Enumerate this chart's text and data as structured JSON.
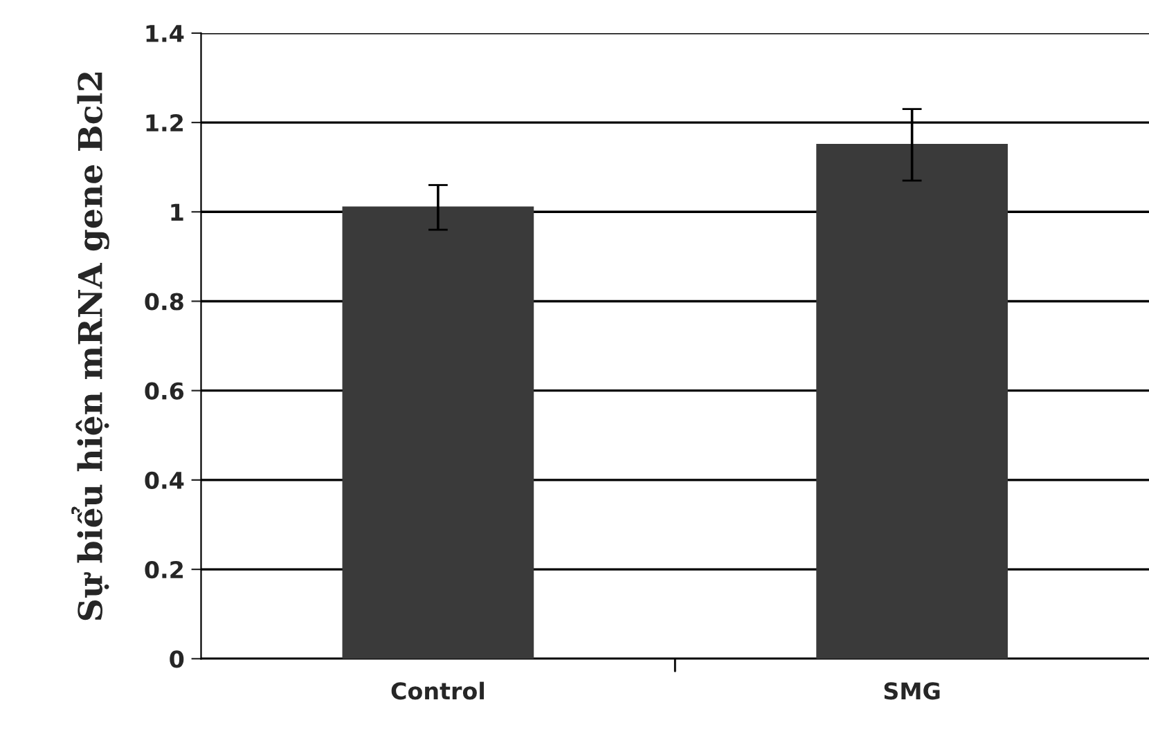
{
  "chart_data": {
    "type": "bar",
    "ylabel": "Sự biểu hiện mRNA gene Bcl2",
    "categories": [
      "Control",
      "SMG"
    ],
    "values": [
      1.01,
      1.15
    ],
    "errors": [
      0.05,
      0.08
    ],
    "color": "#3a3a3a",
    "ylim": [
      0,
      1.4
    ],
    "yticks": [
      0,
      0.2,
      0.4,
      0.6,
      0.8,
      1,
      1.2,
      1.4
    ],
    "grid": "y"
  }
}
